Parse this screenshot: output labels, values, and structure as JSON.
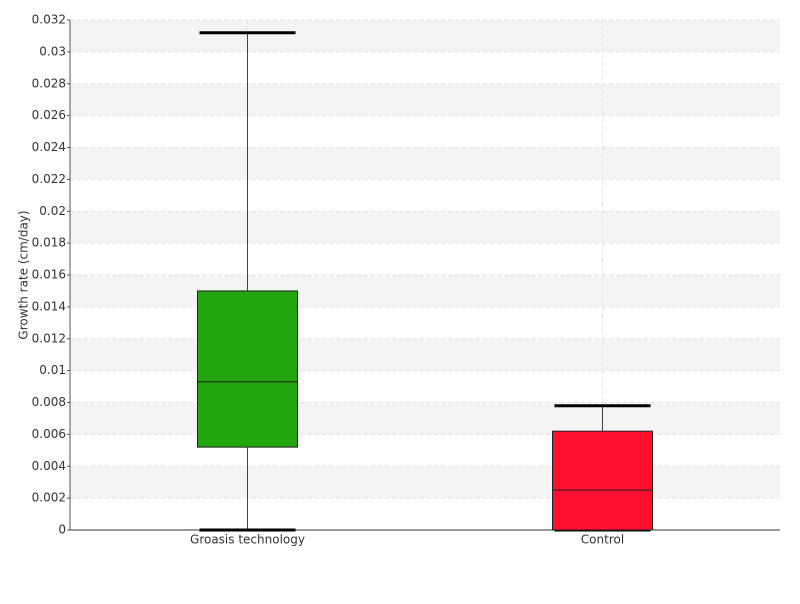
{
  "chart_data": {
    "type": "box",
    "y_label": "Growth rate (cm/day)",
    "categories": [
      "Groasis technology",
      "Control"
    ],
    "boxes": [
      {
        "min": 0,
        "q1": 0.0052,
        "median": 0.0093,
        "q3": 0.015,
        "max": 0.0312,
        "color": "#22a50f"
      },
      {
        "min": 0,
        "q1": 0,
        "median": 0.0025,
        "q3": 0.0062,
        "max": 0.0078,
        "color": "#ff0f2e"
      }
    ],
    "ylim": [
      0,
      0.032
    ],
    "yticks": [
      0,
      0.002,
      0.004,
      0.006,
      0.008,
      0.01,
      0.012,
      0.014,
      0.016,
      0.018,
      0.02,
      0.022,
      0.024,
      0.026,
      0.028,
      0.03,
      0.032
    ],
    "grid": true
  }
}
